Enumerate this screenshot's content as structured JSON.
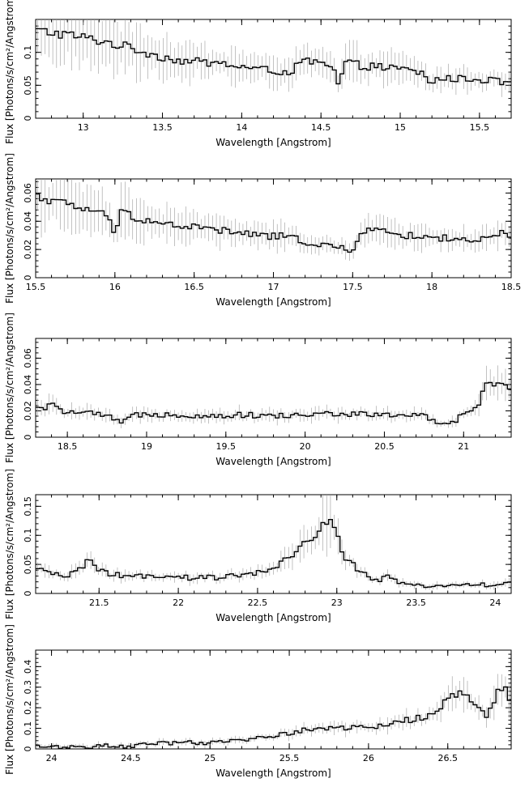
{
  "chart_data": [
    {
      "type": "line",
      "style": "step",
      "xlabel": "Wavelength [Angstrom]",
      "ylabel": "Flux [Photons/s/cm²/Angstrom]",
      "xlim": [
        12.7,
        15.7
      ],
      "ylim": [
        0,
        0.15
      ],
      "xticks": [
        "13",
        "13.5",
        "14",
        "14.5",
        "15",
        "15.5"
      ],
      "yticks": [
        "0",
        "0.05",
        "0.1"
      ],
      "series": [
        {
          "x": [
            12.7,
            12.9,
            13.1,
            13.3,
            13.45,
            13.6,
            13.75,
            13.9,
            14.05,
            14.2,
            14.3,
            14.4,
            14.5,
            14.58,
            14.61,
            14.65,
            14.75,
            14.9,
            15.05,
            15.15,
            15.18,
            15.22,
            15.4,
            15.55,
            15.7
          ],
          "y": [
            0.133,
            0.127,
            0.118,
            0.107,
            0.096,
            0.088,
            0.085,
            0.082,
            0.076,
            0.072,
            0.07,
            0.087,
            0.083,
            0.074,
            0.048,
            0.085,
            0.08,
            0.077,
            0.073,
            0.068,
            0.05,
            0.06,
            0.06,
            0.058,
            0.053
          ]
        }
      ]
    },
    {
      "type": "line",
      "style": "step",
      "xlabel": "Wavelength [Angstrom]",
      "ylabel": "Flux [Photons/s/cm²/Angstrom]",
      "xlim": [
        15.5,
        18.5
      ],
      "ylim": [
        0,
        0.07
      ],
      "xticks": [
        "15.5",
        "16",
        "16.5",
        "17",
        "17.5",
        "18",
        "18.5"
      ],
      "yticks": [
        "0",
        "0.02",
        "0.04",
        "0.06"
      ],
      "series": [
        {
          "x": [
            15.5,
            15.6,
            15.75,
            15.9,
            15.96,
            16.0,
            16.05,
            16.1,
            16.2,
            16.3,
            16.5,
            16.7,
            16.9,
            17.1,
            17.25,
            17.35,
            17.45,
            17.5,
            17.55,
            17.6,
            17.7,
            17.9,
            18.1,
            18.3,
            18.4,
            18.45,
            18.5
          ],
          "y": [
            0.058,
            0.055,
            0.05,
            0.047,
            0.041,
            0.032,
            0.049,
            0.044,
            0.041,
            0.038,
            0.036,
            0.033,
            0.03,
            0.029,
            0.024,
            0.023,
            0.02,
            0.017,
            0.031,
            0.037,
            0.032,
            0.029,
            0.028,
            0.026,
            0.029,
            0.032,
            0.026
          ]
        }
      ]
    },
    {
      "type": "line",
      "style": "step",
      "xlabel": "Wavelength [Angstrom]",
      "ylabel": "Flux [Photons/s/cm²/Angstrom]",
      "xlim": [
        18.3,
        21.3
      ],
      "ylim": [
        0,
        0.075
      ],
      "xticks": [
        "18.5",
        "19",
        "19.5",
        "20",
        "20.5",
        "21"
      ],
      "yticks": [
        "0",
        "0.02",
        "0.04",
        "0.06"
      ],
      "series": [
        {
          "x": [
            18.3,
            18.4,
            18.5,
            18.65,
            18.8,
            18.85,
            18.9,
            19.0,
            19.2,
            19.4,
            19.6,
            19.8,
            20.0,
            20.2,
            20.4,
            20.6,
            20.75,
            20.85,
            20.95,
            21.05,
            21.1,
            21.15,
            21.2,
            21.25,
            21.3
          ],
          "y": [
            0.021,
            0.024,
            0.019,
            0.018,
            0.014,
            0.01,
            0.016,
            0.018,
            0.017,
            0.016,
            0.017,
            0.016,
            0.017,
            0.018,
            0.017,
            0.017,
            0.016,
            0.009,
            0.013,
            0.021,
            0.025,
            0.044,
            0.038,
            0.04,
            0.033
          ]
        }
      ]
    },
    {
      "type": "line",
      "style": "step",
      "xlabel": "Wavelength [Angstrom]",
      "ylabel": "Flux [Photons/s/cm²/Angstrom]",
      "xlim": [
        21.1,
        24.1
      ],
      "ylim": [
        0,
        0.17
      ],
      "xticks": [
        "21.5",
        "22",
        "22.5",
        "23",
        "23.5",
        "24"
      ],
      "yticks": [
        "0",
        "0.05",
        "0.1",
        "0.15"
      ],
      "series": [
        {
          "x": [
            21.1,
            21.2,
            21.3,
            21.45,
            21.5,
            21.6,
            21.8,
            22.0,
            22.2,
            22.4,
            22.55,
            22.65,
            22.75,
            22.8,
            22.85,
            22.9,
            22.95,
            23.0,
            23.05,
            23.15,
            23.25,
            23.3,
            23.4,
            23.5,
            23.7,
            23.9,
            24.1
          ],
          "y": [
            0.04,
            0.035,
            0.03,
            0.058,
            0.038,
            0.032,
            0.028,
            0.027,
            0.027,
            0.031,
            0.037,
            0.052,
            0.07,
            0.09,
            0.095,
            0.117,
            0.13,
            0.1,
            0.062,
            0.038,
            0.02,
            0.03,
            0.016,
            0.014,
            0.014,
            0.015,
            0.016
          ]
        }
      ]
    },
    {
      "type": "line",
      "style": "step",
      "xlabel": "Wavelength [Angstrom]",
      "ylabel": "Flux [Photons/s/cm²/Angstrom]",
      "xlim": [
        23.9,
        26.9
      ],
      "ylim": [
        0,
        0.48
      ],
      "xticks": [
        "24",
        "24.5",
        "25",
        "25.5",
        "26",
        "26.5"
      ],
      "yticks": [
        "0",
        "0.1",
        "0.2",
        "0.3",
        "0.4"
      ],
      "series": [
        {
          "x": [
            23.9,
            24.2,
            24.5,
            24.8,
            25.0,
            25.2,
            25.4,
            25.6,
            25.8,
            26.0,
            26.2,
            26.4,
            26.5,
            26.55,
            26.6,
            26.7,
            26.75,
            26.8,
            26.85,
            26.9
          ],
          "y": [
            0.01,
            0.012,
            0.015,
            0.03,
            0.026,
            0.045,
            0.065,
            0.09,
            0.105,
            0.1,
            0.135,
            0.16,
            0.24,
            0.27,
            0.26,
            0.2,
            0.14,
            0.26,
            0.3,
            0.24
          ]
        }
      ]
    }
  ]
}
